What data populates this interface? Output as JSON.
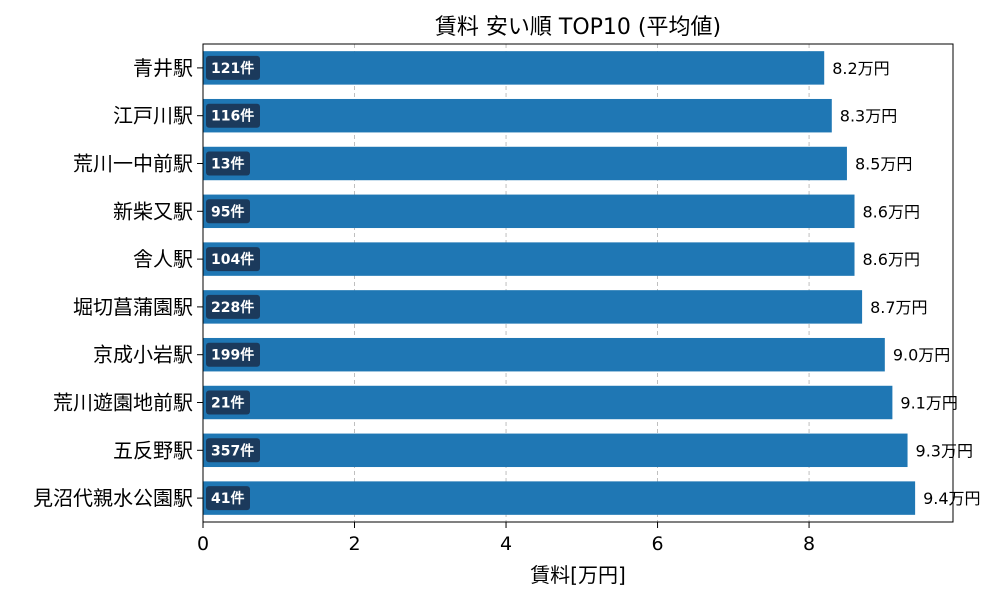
{
  "chart_data": {
    "type": "bar",
    "orientation": "horizontal",
    "title": "賃料 安い順 TOP10 (平均値)",
    "xlabel": "賃料[万円]",
    "ylabel": "",
    "xlim": [
      0,
      9.9
    ],
    "xticks": [
      0,
      2,
      4,
      6,
      8
    ],
    "grid": {
      "x": true,
      "style": "dashed"
    },
    "value_suffix": "万円",
    "bar_color": "#1f77b4",
    "count_badge_color": "#1b3a5c",
    "categories": [
      "青井駅",
      "江戸川駅",
      "荒川一中前駅",
      "新柴又駅",
      "舎人駅",
      "堀切菖蒲園駅",
      "京成小岩駅",
      "荒川遊園地前駅",
      "五反野駅",
      "見沼代親水公園駅"
    ],
    "values": [
      8.2,
      8.3,
      8.5,
      8.6,
      8.6,
      8.7,
      9.0,
      9.1,
      9.3,
      9.4
    ],
    "value_labels": [
      "8.2万円",
      "8.3万円",
      "8.5万円",
      "8.6万円",
      "8.6万円",
      "8.7万円",
      "9.0万円",
      "9.1万円",
      "9.3万円",
      "9.4万円"
    ],
    "counts": [
      "121件",
      "116件",
      "13件",
      "95件",
      "104件",
      "228件",
      "199件",
      "21件",
      "357件",
      "41件"
    ]
  }
}
